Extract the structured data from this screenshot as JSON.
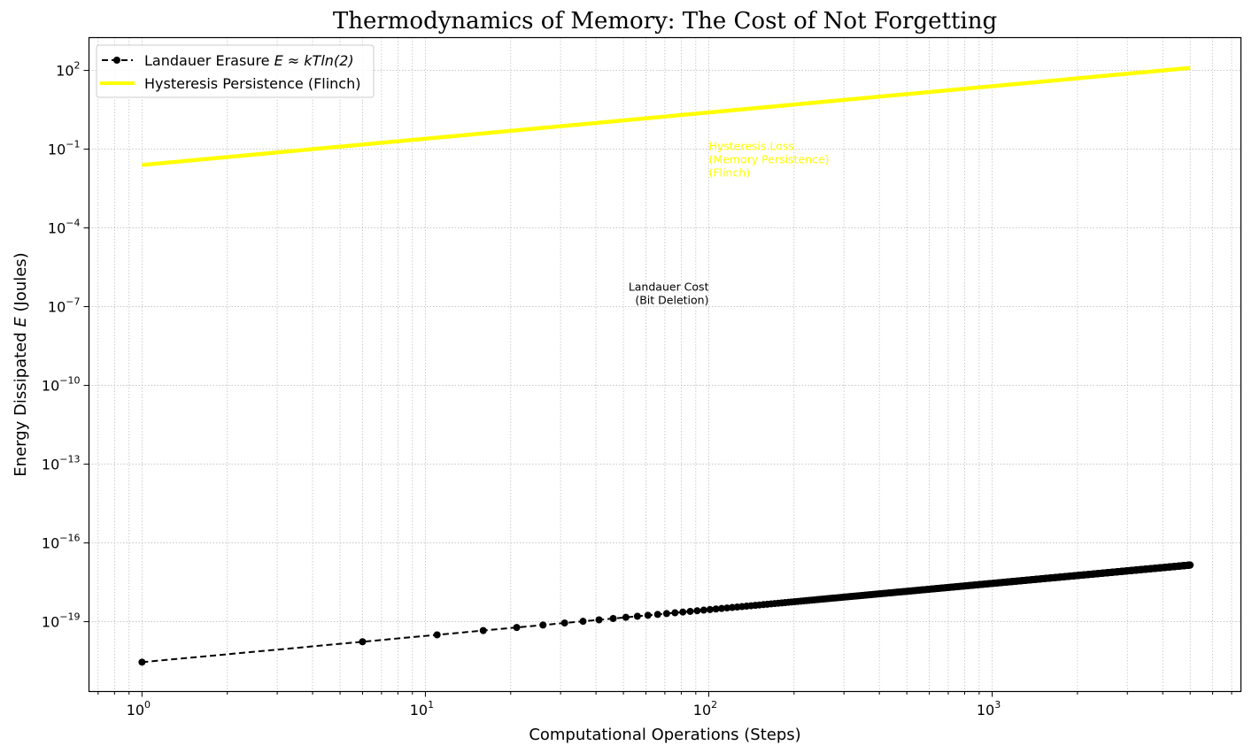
{
  "chart_data": {
    "type": "line",
    "title": "Thermodynamics of Memory: The Cost of Not Forgetting",
    "xlabel": "Computational Operations (Steps)",
    "ylabel_parts": [
      "Energy Dissipated ",
      "E",
      " (Joules)"
    ],
    "xscale": "log",
    "yscale": "log",
    "xlim": [
      0.65,
      7550
    ],
    "ylim_log10": [
      -21.66,
      3.25
    ],
    "grid": true,
    "grid_style": "dotted, major and minor",
    "xticks": [
      {
        "base": "10",
        "exp": "0",
        "value": 1
      },
      {
        "base": "10",
        "exp": "1",
        "value": 10
      },
      {
        "base": "10",
        "exp": "2",
        "value": 100
      },
      {
        "base": "10",
        "exp": "3",
        "value": 1000
      }
    ],
    "yticks": [
      {
        "base": "10",
        "exp": "2",
        "log": 2
      },
      {
        "base": "10",
        "exp": "−1",
        "log": -1
      },
      {
        "base": "10",
        "exp": "−4",
        "log": -4
      },
      {
        "base": "10",
        "exp": "−7",
        "log": -7
      },
      {
        "base": "10",
        "exp": "−10",
        "log": -10
      },
      {
        "base": "10",
        "exp": "−13",
        "log": -13
      },
      {
        "base": "10",
        "exp": "−16",
        "log": -16
      },
      {
        "base": "10",
        "exp": "−19",
        "log": -19
      }
    ],
    "legend_position": "top-left",
    "series": [
      {
        "name": "Landauer Erasure",
        "legend_label_prefix": "Landauer Erasure ",
        "legend_label_math": "E ≈ kTln(2)",
        "color": "#000000",
        "style": "dashed line with circle markers",
        "x_rule": {
          "start": 1,
          "stop": 5000,
          "step": 5
        },
        "y_formula": "E = n * 2.87e-21",
        "unit_energy": 2.87e-21
      },
      {
        "name": "Hysteresis Persistence (Flinch)",
        "legend_label": "Hysteresis Persistence (Flinch)",
        "color": "#ffff00",
        "style": "solid thick line",
        "x_range": [
          1,
          5000
        ],
        "y_formula": "E = 0.025 * n",
        "coefficient": 0.025
      }
    ],
    "annotations": [
      {
        "lines": [
          "Hysteresis Loss",
          "(Memory Persistence)",
          "(Flinch)"
        ],
        "x": 100,
        "y": 0.034,
        "color": "#ffff00",
        "align": "left"
      },
      {
        "lines": [
          "Landauer Cost",
          "(Bit Deletion)"
        ],
        "x": 100,
        "y": 1e-07,
        "color": "#000000",
        "align": "right"
      }
    ]
  }
}
